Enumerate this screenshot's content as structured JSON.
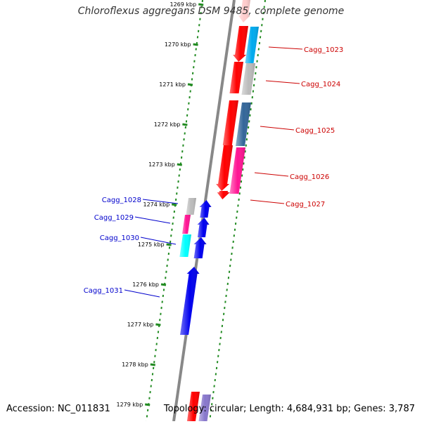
{
  "title": "Chloroflexus aggregans DSM 9485, complete genome",
  "ruler_ticks": [
    {
      "label": "1269 kbp",
      "kbp": 1269
    },
    {
      "label": "1270 kbp",
      "kbp": 1270
    },
    {
      "label": "1271 kbp",
      "kbp": 1271
    },
    {
      "label": "1272 kbp",
      "kbp": 1272
    },
    {
      "label": "1273 kbp",
      "kbp": 1273
    },
    {
      "label": "1274 kbp",
      "kbp": 1274
    },
    {
      "label": "1275 kbp",
      "kbp": 1275
    },
    {
      "label": "1276 kbp",
      "kbp": 1276
    },
    {
      "label": "1277 kbp",
      "kbp": 1277
    },
    {
      "label": "1278 kbp",
      "kbp": 1278
    },
    {
      "label": "1279 kbp",
      "kbp": 1279
    }
  ],
  "genes_right": [
    {
      "label": "Cagg_1023",
      "color": "#cc0000"
    },
    {
      "label": "Cagg_1024",
      "color": "#cc0000"
    },
    {
      "label": "Cagg_1025",
      "color": "#cc0000"
    },
    {
      "label": "Cagg_1026",
      "color": "#cc0000"
    },
    {
      "label": "Cagg_1027",
      "color": "#cc0000"
    }
  ],
  "genes_left": [
    {
      "label": "Cagg_1028",
      "color": "#0000cc"
    },
    {
      "label": "Cagg_1029",
      "color": "#0000cc"
    },
    {
      "label": "Cagg_1030",
      "color": "#0000cc"
    },
    {
      "label": "Cagg_1031",
      "color": "#0000cc"
    }
  ],
  "colors": {
    "tick": "#228b22",
    "backbone": "#888888",
    "forward_strand": "#ff0000",
    "reverse_strand": "#0000ee",
    "cog_cyan": "#00ffff",
    "cog_skyblue": "#00aaee",
    "cog_steel": "#336699",
    "cog_pink": "#ff1493",
    "cog_gray": "#bbbbbb"
  },
  "footer": {
    "accession": "Accession: NC_011831",
    "topology": "Topology: circular; Length: 4,684,931 bp; Genes: 3,787"
  }
}
